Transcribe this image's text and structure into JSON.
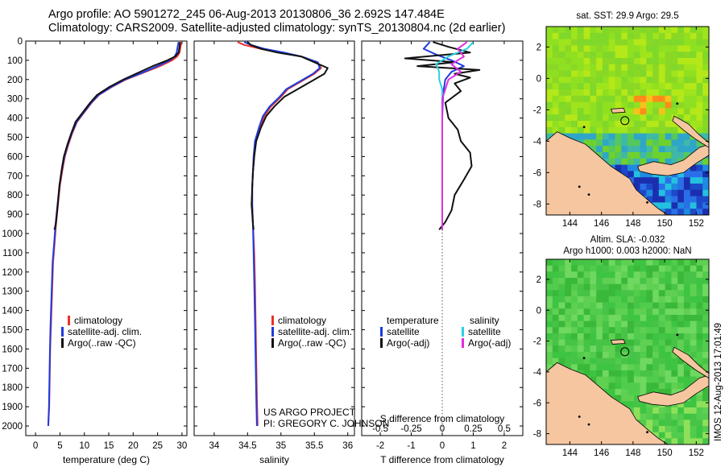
{
  "header": {
    "line1": "Argo profile: AO 5901272_245 06-Aug-2013 20130806_36 2.692S 147.484E",
    "line2": "Climatology: CARS2009. Satellite-adjusted climatology: synTS_20130804.nc (2d earlier)"
  },
  "side_stamp": "IMOS 12-Aug-2013 17:01:49",
  "credit": {
    "line1": "US ARGO PROJECT",
    "line2": "PI: GREGORY C. JOHNSON"
  },
  "colors": {
    "climatology": "#e8312a",
    "satellite": "#1f3be0",
    "argo": "#111111",
    "sal_satellite": "#29d3e0",
    "sal_argo": "#e02ee0",
    "land": "#f5c6a0",
    "sea_sla": "#47c447"
  },
  "chart_data": [
    {
      "id": "temperature",
      "type": "line",
      "xlabel": "temperature (deg C)",
      "xlim": [
        -2,
        31
      ],
      "ylim": [
        0,
        2050
      ],
      "xticks": [
        0,
        5,
        10,
        15,
        20,
        25,
        30
      ],
      "yticks": [
        0,
        100,
        200,
        300,
        400,
        500,
        600,
        700,
        800,
        900,
        1000,
        1100,
        1200,
        1300,
        1400,
        1500,
        1600,
        1700,
        1800,
        1900,
        2000
      ],
      "legend": [
        "climatology",
        "satellite-adj. clim.",
        "Argo(..raw -QC)"
      ],
      "series": [
        {
          "name": "climatology",
          "color": "#e8312a",
          "x": [
            29.9,
            29.7,
            29.5,
            29.0,
            28.0,
            25.5,
            22.0,
            18.5,
            15.5,
            13.0,
            11.5,
            10.0,
            8.5,
            7.5,
            6.7,
            6.0,
            5.5,
            5.0,
            4.6,
            4.2,
            3.9,
            3.6,
            3.4,
            3.2,
            3.0,
            2.9,
            2.8,
            2.6
          ],
          "y": [
            5,
            30,
            60,
            80,
            100,
            130,
            165,
            200,
            240,
            280,
            320,
            370,
            420,
            480,
            540,
            600,
            670,
            750,
            850,
            950,
            1050,
            1150,
            1300,
            1450,
            1600,
            1750,
            1900,
            2000
          ]
        },
        {
          "name": "satellite-adj. clim.",
          "color": "#1f3be0",
          "x": [
            29.3,
            29.1,
            28.9,
            28.5,
            27.5,
            25.0,
            21.8,
            18.3,
            15.4,
            12.9,
            11.4,
            9.9,
            8.4,
            7.4,
            6.6,
            5.9,
            5.4,
            4.9,
            4.5,
            4.1,
            3.8,
            3.5,
            3.3,
            3.1,
            2.95,
            2.85,
            2.75,
            2.6
          ],
          "y": [
            5,
            30,
            60,
            80,
            100,
            130,
            165,
            200,
            240,
            280,
            320,
            370,
            420,
            480,
            540,
            600,
            670,
            750,
            850,
            950,
            1050,
            1150,
            1300,
            1450,
            1600,
            1750,
            1900,
            2000
          ]
        },
        {
          "name": "Argo(..raw -QC)",
          "color": "#111111",
          "x": [
            29.6,
            29.5,
            29.3,
            28.6,
            27.0,
            24.0,
            21.0,
            18.0,
            15.0,
            12.6,
            11.2,
            9.7,
            8.2,
            7.3,
            6.5,
            5.8,
            5.35,
            4.9,
            4.55,
            4.15,
            3.85
          ],
          "y": [
            5,
            30,
            60,
            80,
            100,
            130,
            165,
            200,
            240,
            280,
            320,
            370,
            420,
            480,
            540,
            600,
            670,
            750,
            850,
            950,
            980
          ]
        }
      ]
    },
    {
      "id": "salinity",
      "type": "line",
      "xlabel": "salinity",
      "xlim": [
        33.7,
        36.1
      ],
      "ylim": [
        0,
        2050
      ],
      "xticks": [
        34,
        34.5,
        35,
        35.5,
        36
      ],
      "legend": [
        "climatology",
        "satellite-adj. clim.",
        "Argo(..raw -QC)"
      ],
      "series": [
        {
          "name": "climatology",
          "color": "#e8312a",
          "x": [
            34.35,
            34.45,
            34.7,
            35.0,
            35.3,
            35.55,
            35.6,
            35.5,
            35.3,
            35.1,
            35.0,
            34.85,
            34.75,
            34.68,
            34.62,
            34.6,
            34.58,
            34.57,
            34.57,
            34.58,
            34.6,
            34.61,
            34.62,
            34.63,
            34.64,
            34.65
          ],
          "y": [
            5,
            20,
            40,
            60,
            80,
            110,
            140,
            170,
            210,
            250,
            290,
            340,
            390,
            450,
            520,
            600,
            680,
            760,
            850,
            950,
            1100,
            1250,
            1450,
            1650,
            1850,
            2000
          ]
        },
        {
          "name": "satellite-adj. clim.",
          "color": "#1f3be0",
          "x": [
            34.45,
            34.55,
            34.75,
            35.05,
            35.3,
            35.55,
            35.58,
            35.48,
            35.28,
            35.08,
            34.98,
            34.83,
            34.73,
            34.67,
            34.61,
            34.59,
            34.58,
            34.57,
            34.57,
            34.58,
            34.59,
            34.6,
            34.61,
            34.62,
            34.63,
            34.64
          ],
          "y": [
            5,
            20,
            40,
            60,
            80,
            110,
            140,
            170,
            210,
            250,
            290,
            340,
            390,
            450,
            520,
            600,
            680,
            760,
            850,
            950,
            1100,
            1250,
            1450,
            1650,
            1850,
            2000
          ]
        },
        {
          "name": "Argo(..raw -QC)",
          "color": "#111111",
          "x": [
            34.5,
            34.55,
            34.7,
            34.95,
            35.3,
            35.5,
            35.7,
            35.65,
            35.45,
            35.25,
            35.05,
            34.9,
            34.78,
            34.7,
            34.63,
            34.6,
            34.58,
            34.57,
            34.56,
            34.58,
            34.59
          ],
          "y": [
            5,
            20,
            40,
            60,
            80,
            110,
            140,
            170,
            210,
            250,
            290,
            340,
            390,
            450,
            520,
            600,
            680,
            760,
            850,
            950,
            980
          ]
        }
      ]
    },
    {
      "id": "difference",
      "type": "line",
      "xlabel_top": "S difference from climatology",
      "xlabel_bottom": "T difference from climatology",
      "xlim": [
        -2.6,
        2.6
      ],
      "ylim": [
        0,
        2050
      ],
      "xticks_bottom": [
        -2,
        -1,
        0,
        1,
        2
      ],
      "xticklabels_top": [
        "-0.5",
        "-0.25",
        "0",
        "0.25",
        "0.5"
      ],
      "legend_left_title": "temperature",
      "legend_right_title": "salinity",
      "legend_left": [
        "satellite",
        "Argo(-adj)"
      ],
      "legend_right": [
        "satellite",
        "Argo(-adj)"
      ],
      "series": [
        {
          "name": "T satellite",
          "color": "#1f3be0",
          "x": [
            -0.4,
            -0.6,
            -0.2,
            0.3,
            0.7,
            0.3,
            0.1,
            0.05,
            0.02,
            0.0,
            0.0,
            0.0,
            0.0,
            0.0,
            0.0,
            0.0,
            0.0
          ],
          "y": [
            5,
            40,
            70,
            100,
            130,
            160,
            200,
            250,
            300,
            400,
            500,
            600,
            700,
            800,
            900,
            950,
            980
          ]
        },
        {
          "name": "T Argo(-adj)",
          "color": "#111111",
          "x": [
            -0.3,
            0.2,
            0.9,
            -1.2,
            0.4,
            -0.8,
            1.2,
            0.4,
            0.9,
            0.4,
            0.6,
            0.1,
            0.2,
            0.5,
            0.6,
            0.9,
            0.95,
            0.7,
            0.4,
            0.3,
            0.1,
            -0.1
          ],
          "y": [
            5,
            30,
            60,
            90,
            110,
            130,
            150,
            170,
            190,
            220,
            260,
            320,
            400,
            460,
            520,
            580,
            650,
            720,
            800,
            880,
            940,
            980
          ]
        },
        {
          "name": "S satellite",
          "color": "#29d3e0",
          "x": [
            1.0,
            0.8,
            0.2,
            -0.2,
            -0.1,
            -0.1,
            0.0,
            0.0,
            0.0,
            0.0,
            0.0,
            0.0,
            0.0,
            0.0,
            0.0
          ],
          "y": [
            5,
            40,
            80,
            120,
            160,
            200,
            250,
            300,
            400,
            500,
            600,
            700,
            800,
            900,
            980
          ]
        },
        {
          "name": "S Argo(-adj)",
          "color": "#e02ee0",
          "x": [
            0.8,
            0.5,
            0.7,
            0.3,
            0.6,
            0.2,
            0.1,
            0.0,
            0.0,
            0.0,
            0.0,
            0.0,
            0.0,
            0.0,
            0.0
          ],
          "y": [
            5,
            40,
            80,
            120,
            160,
            200,
            250,
            300,
            400,
            500,
            600,
            700,
            800,
            900,
            980
          ]
        }
      ]
    },
    {
      "id": "sst-map",
      "type": "heatmap",
      "title": "sat. SST: 29.9 Argo: 29.5",
      "xlim": [
        142.5,
        152.8
      ],
      "ylim": [
        -8.7,
        3.3
      ],
      "xticks": [
        144,
        146,
        148,
        150,
        152
      ],
      "yticks": [
        2,
        0,
        -2,
        -4,
        -6,
        -8
      ]
    },
    {
      "id": "sla-map",
      "type": "heatmap",
      "title": "Altim. SLA: -0.032",
      "subtitle": "Argo h1000: 0.003 h2000: NaN",
      "xlim": [
        142.5,
        152.8
      ],
      "ylim": [
        -8.7,
        3.3
      ],
      "xticks": [
        144,
        146,
        148,
        150,
        152
      ],
      "yticks": [
        2,
        0,
        -2,
        -4,
        -6,
        -8
      ]
    }
  ]
}
